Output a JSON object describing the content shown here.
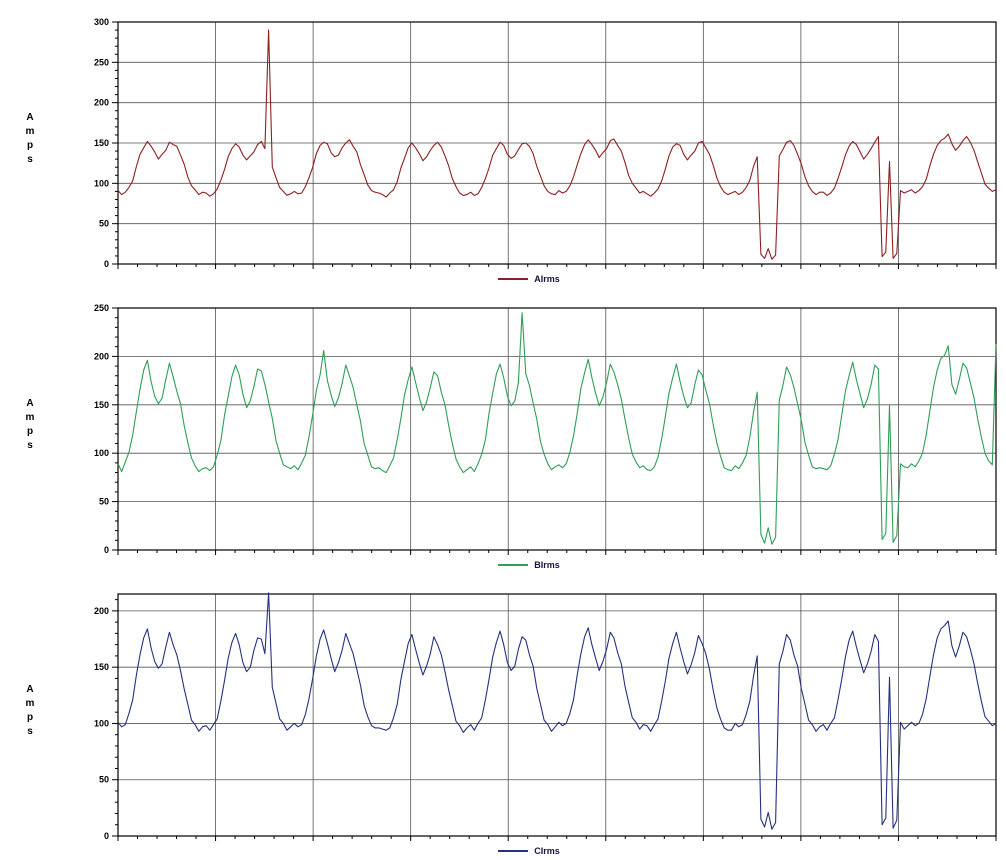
{
  "style": {
    "background": "#ffffff",
    "grid_color": "#555555",
    "axis_color": "#000000",
    "text_color": "#14143c",
    "tick_label_color": "#000000"
  },
  "chart_data": [
    {
      "type": "line",
      "title": "",
      "xlabel": "",
      "ylabel": "Amps",
      "ylim": [
        0,
        300
      ],
      "yticks": [
        0,
        50,
        100,
        150,
        200,
        250,
        300
      ],
      "y_minor_step": 10,
      "v_gridline_divisions": 9,
      "grid": true,
      "legend_position": "bottom-center",
      "series": [
        {
          "name": "AIrms",
          "color": "#8d1f1f",
          "values": [
            91,
            86,
            89,
            95,
            103,
            121,
            136,
            144,
            152,
            146,
            139,
            130,
            136,
            141,
            151,
            148,
            146,
            135,
            124,
            108,
            97,
            92,
            86,
            89,
            88,
            84,
            87,
            93,
            104,
            117,
            133,
            143,
            149,
            145,
            135,
            129,
            134,
            139,
            148,
            152,
            143,
            290,
            120,
            107,
            95,
            90,
            85,
            87,
            90,
            87,
            88,
            96,
            107,
            120,
            137,
            147,
            151,
            149,
            138,
            133,
            135,
            144,
            150,
            154,
            146,
            139,
            123,
            111,
            98,
            91,
            89,
            88,
            86,
            83,
            88,
            92,
            102,
            119,
            131,
            144,
            150,
            144,
            137,
            128,
            133,
            141,
            147,
            151,
            145,
            134,
            122,
            106,
            96,
            88,
            85,
            86,
            89,
            85,
            87,
            95,
            106,
            119,
            135,
            143,
            151,
            147,
            136,
            131,
            134,
            142,
            149,
            150,
            146,
            137,
            121,
            109,
            97,
            90,
            87,
            86,
            91,
            88,
            90,
            97,
            108,
            123,
            137,
            148,
            154,
            148,
            141,
            132,
            138,
            143,
            153,
            155,
            147,
            140,
            126,
            110,
            100,
            94,
            88,
            90,
            87,
            84,
            88,
            93,
            103,
            118,
            134,
            145,
            149,
            147,
            136,
            129,
            135,
            140,
            150,
            152,
            144,
            136,
            123,
            107,
            96,
            89,
            86,
            88,
            90,
            86,
            89,
            95,
            104,
            121,
            133,
            12,
            7,
            19,
            6,
            11,
            134,
            142,
            151,
            153,
            147,
            136,
            124,
            108,
            97,
            90,
            86,
            89,
            89,
            85,
            88,
            94,
            106,
            120,
            135,
            146,
            152,
            148,
            139,
            130,
            136,
            143,
            151,
            158,
            9,
            15,
            127,
            7,
            13,
            91,
            88,
            90,
            92,
            88,
            91,
            96,
            105,
            122,
            136,
            147,
            153,
            156,
            161,
            149,
            141,
            146,
            153,
            158,
            151,
            141,
            127,
            113,
            99,
            94,
            90,
            92
          ]
        }
      ]
    },
    {
      "type": "line",
      "title": "",
      "xlabel": "",
      "ylabel": "Amps",
      "ylim": [
        0,
        250
      ],
      "yticks": [
        0,
        50,
        100,
        150,
        200,
        250
      ],
      "y_minor_step": 10,
      "v_gridline_divisions": 9,
      "grid": true,
      "legend_position": "bottom-center",
      "series": [
        {
          "name": "BIrms",
          "color": "#2e9e58",
          "values": [
            89,
            81,
            91,
            101,
            119,
            143,
            166,
            186,
            196,
            174,
            159,
            151,
            157,
            176,
            193,
            179,
            164,
            151,
            129,
            111,
            95,
            87,
            81,
            84,
            85,
            82,
            86,
            98,
            113,
            139,
            159,
            179,
            191,
            181,
            161,
            147,
            154,
            169,
            187,
            185,
            171,
            153,
            136,
            113,
            100,
            88,
            86,
            84,
            87,
            83,
            90,
            98,
            117,
            140,
            165,
            181,
            206,
            175,
            160,
            148,
            157,
            172,
            191,
            180,
            168,
            150,
            133,
            110,
            98,
            86,
            84,
            85,
            82,
            80,
            87,
            95,
            114,
            136,
            160,
            176,
            189,
            173,
            158,
            144,
            153,
            168,
            184,
            180,
            163,
            150,
            129,
            110,
            94,
            86,
            80,
            83,
            86,
            81,
            89,
            99,
            114,
            141,
            162,
            182,
            192,
            178,
            159,
            149,
            154,
            173,
            245,
            182,
            170,
            152,
            135,
            112,
            99,
            89,
            83,
            86,
            88,
            85,
            89,
            101,
            118,
            141,
            167,
            183,
            197,
            178,
            162,
            149,
            158,
            173,
            192,
            184,
            171,
            156,
            135,
            116,
            99,
            91,
            85,
            87,
            83,
            82,
            86,
            96,
            115,
            138,
            162,
            178,
            192,
            174,
            159,
            147,
            152,
            171,
            186,
            181,
            165,
            151,
            130,
            111,
            97,
            85,
            83,
            82,
            87,
            84,
            90,
            98,
            117,
            142,
            163,
            16,
            7,
            23,
            6,
            13,
            155,
            170,
            189,
            181,
            168,
            151,
            134,
            111,
            98,
            86,
            84,
            85,
            84,
            83,
            87,
            99,
            114,
            139,
            164,
            180,
            194,
            176,
            161,
            147,
            156,
            171,
            191,
            187,
            11,
            17,
            149,
            8,
            15,
            89,
            86,
            85,
            89,
            86,
            92,
            100,
            119,
            144,
            168,
            186,
            198,
            201,
            211,
            171,
            161,
            176,
            193,
            188,
            173,
            157,
            136,
            117,
            100,
            92,
            88,
            213
          ]
        }
      ]
    },
    {
      "type": "line",
      "title": "",
      "xlabel": "",
      "ylabel": "Amps",
      "ylim": [
        0,
        215
      ],
      "yticks": [
        0,
        50,
        100,
        150,
        200
      ],
      "y_minor_step": 10,
      "v_gridline_divisions": 9,
      "grid": true,
      "legend_position": "bottom-center",
      "series": [
        {
          "name": "CIrms",
          "color": "#25317e",
          "values": [
            101,
            97,
            99,
            109,
            121,
            143,
            161,
            176,
            184,
            167,
            155,
            149,
            153,
            168,
            181,
            170,
            161,
            147,
            131,
            117,
            103,
            99,
            93,
            97,
            98,
            94,
            99,
            104,
            120,
            138,
            158,
            172,
            180,
            170,
            154,
            146,
            150,
            165,
            176,
            175,
            162,
            216,
            132,
            118,
            104,
            100,
            94,
            97,
            100,
            97,
            99,
            108,
            122,
            140,
            160,
            175,
            183,
            171,
            158,
            146,
            154,
            165,
            180,
            171,
            162,
            148,
            134,
            116,
            106,
            98,
            96,
            96,
            95,
            94,
            96,
            105,
            117,
            139,
            155,
            171,
            179,
            166,
            154,
            143,
            151,
            162,
            177,
            170,
            161,
            146,
            130,
            116,
            102,
            98,
            92,
            96,
            99,
            94,
            100,
            105,
            121,
            139,
            159,
            172,
            182,
            170,
            154,
            147,
            151,
            166,
            177,
            174,
            161,
            151,
            131,
            117,
            103,
            99,
            93,
            97,
            101,
            98,
            100,
            109,
            121,
            143,
            162,
            177,
            185,
            170,
            158,
            147,
            155,
            166,
            181,
            176,
            163,
            153,
            133,
            119,
            105,
            101,
            95,
            99,
            98,
            93,
            99,
            104,
            120,
            138,
            158,
            171,
            181,
            167,
            155,
            144,
            152,
            163,
            178,
            171,
            162,
            148,
            130,
            114,
            104,
            96,
            94,
            94,
            100,
            97,
            99,
            108,
            120,
            142,
            160,
            15,
            8,
            21,
            6,
            12,
            153,
            164,
            179,
            174,
            161,
            151,
            131,
            117,
            103,
            99,
            93,
            97,
            99,
            94,
            100,
            105,
            121,
            139,
            159,
            174,
            182,
            168,
            156,
            145,
            153,
            164,
            179,
            173,
            10,
            16,
            141,
            7,
            14,
            101,
            95,
            98,
            101,
            98,
            100,
            108,
            122,
            142,
            161,
            176,
            184,
            187,
            191,
            169,
            159,
            169,
            181,
            177,
            166,
            153,
            136,
            120,
            106,
            102,
            98,
            100
          ]
        }
      ]
    }
  ]
}
